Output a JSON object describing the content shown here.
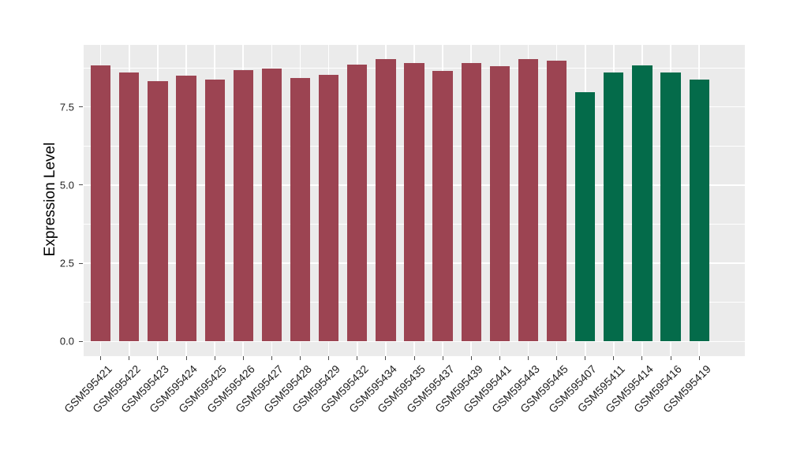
{
  "chart_data": {
    "type": "bar",
    "title": "",
    "xlabel": "",
    "ylabel": "Expression Level",
    "legend": "none",
    "grid": "on",
    "panel_bg": "#EBEBEB",
    "grid_color": "#FFFFFF",
    "axis_text_color": "#1F1F1F",
    "tick_mark_color": "#4D4D4D",
    "ylim_panel": [
      -0.47,
      9.48
    ],
    "y_major_ticks": [
      {
        "v": 0.0,
        "label": "0.0"
      },
      {
        "v": 2.5,
        "label": "2.5"
      },
      {
        "v": 5.0,
        "label": "5.0"
      },
      {
        "v": 7.5,
        "label": "7.5"
      }
    ],
    "y_minor_ticks": [
      1.25,
      3.75,
      6.25,
      8.75
    ],
    "group_colors": {
      "maroon": "#9C4452",
      "green": "#046B4A"
    },
    "bars": [
      {
        "label": "GSM595421",
        "value": 8.82,
        "group": "maroon"
      },
      {
        "label": "GSM595422",
        "value": 8.6,
        "group": "maroon"
      },
      {
        "label": "GSM595423",
        "value": 8.33,
        "group": "maroon"
      },
      {
        "label": "GSM595424",
        "value": 8.5,
        "group": "maroon"
      },
      {
        "label": "GSM595425",
        "value": 8.38,
        "group": "maroon"
      },
      {
        "label": "GSM595426",
        "value": 8.68,
        "group": "maroon"
      },
      {
        "label": "GSM595427",
        "value": 8.73,
        "group": "maroon"
      },
      {
        "label": "GSM595428",
        "value": 8.42,
        "group": "maroon"
      },
      {
        "label": "GSM595429",
        "value": 8.53,
        "group": "maroon"
      },
      {
        "label": "GSM595432",
        "value": 8.86,
        "group": "maroon"
      },
      {
        "label": "GSM595434",
        "value": 9.03,
        "group": "maroon"
      },
      {
        "label": "GSM595435",
        "value": 8.9,
        "group": "maroon"
      },
      {
        "label": "GSM595437",
        "value": 8.66,
        "group": "maroon"
      },
      {
        "label": "GSM595439",
        "value": 8.9,
        "group": "maroon"
      },
      {
        "label": "GSM595441",
        "value": 8.79,
        "group": "maroon"
      },
      {
        "label": "GSM595443",
        "value": 9.02,
        "group": "maroon"
      },
      {
        "label": "GSM595445",
        "value": 8.98,
        "group": "maroon"
      },
      {
        "label": "GSM595407",
        "value": 7.96,
        "group": "green"
      },
      {
        "label": "GSM595411",
        "value": 8.6,
        "group": "green"
      },
      {
        "label": "GSM595414",
        "value": 8.83,
        "group": "green"
      },
      {
        "label": "GSM595416",
        "value": 8.6,
        "group": "green"
      },
      {
        "label": "GSM595419",
        "value": 8.38,
        "group": "green"
      }
    ]
  }
}
